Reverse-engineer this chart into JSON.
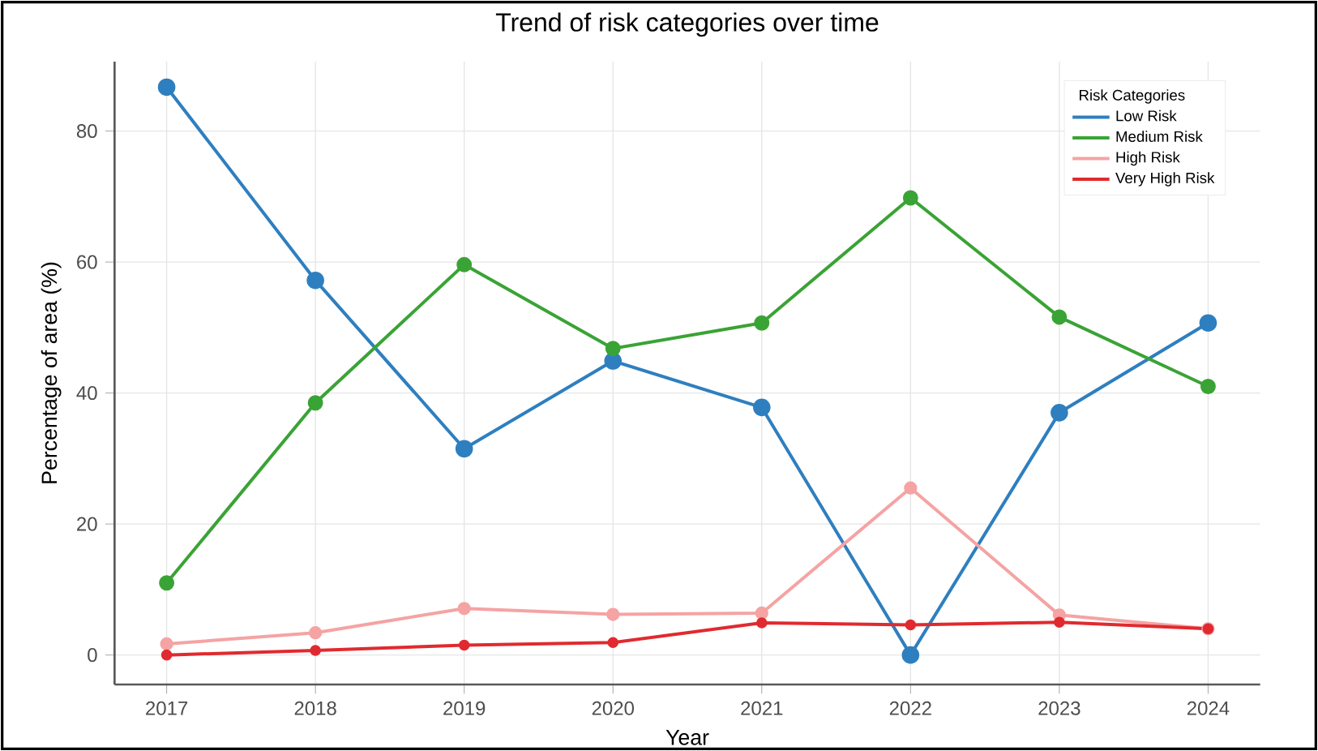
{
  "chart_data": {
    "type": "line",
    "title": "Trend of risk categories over time",
    "xlabel": "Year",
    "ylabel": "Percentage of area (%)",
    "legend_title": "Risk Categories",
    "x": [
      2017,
      2018,
      2019,
      2020,
      2021,
      2022,
      2023,
      2024
    ],
    "series": [
      {
        "name": "Low Risk",
        "color": "#2e7fbf",
        "values": [
          86.7,
          57.2,
          31.5,
          44.9,
          37.8,
          0,
          37.0,
          50.7
        ]
      },
      {
        "name": "Medium Risk",
        "color": "#3aa335",
        "values": [
          11.0,
          38.5,
          59.6,
          46.8,
          50.7,
          69.8,
          51.6,
          41.0
        ]
      },
      {
        "name": "High Risk",
        "color": "#f5a3a3",
        "values": [
          1.7,
          3.4,
          7.1,
          6.2,
          6.4,
          25.5,
          6.1,
          4.0
        ]
      },
      {
        "name": "Very High Risk",
        "color": "#e02a2f",
        "values": [
          0,
          0.7,
          1.5,
          1.9,
          4.9,
          4.6,
          5.0,
          4.0
        ]
      }
    ],
    "xlim": [
      2016.65,
      2024.35
    ],
    "ylim": [
      -4.5,
      90.6
    ],
    "xticks": [
      2017,
      2018,
      2019,
      2020,
      2021,
      2022,
      2023,
      2024
    ],
    "yticks": [
      0,
      20,
      40,
      60,
      80
    ],
    "grid": true,
    "legend": "top right",
    "marker": "circle",
    "line_style": "solid"
  }
}
